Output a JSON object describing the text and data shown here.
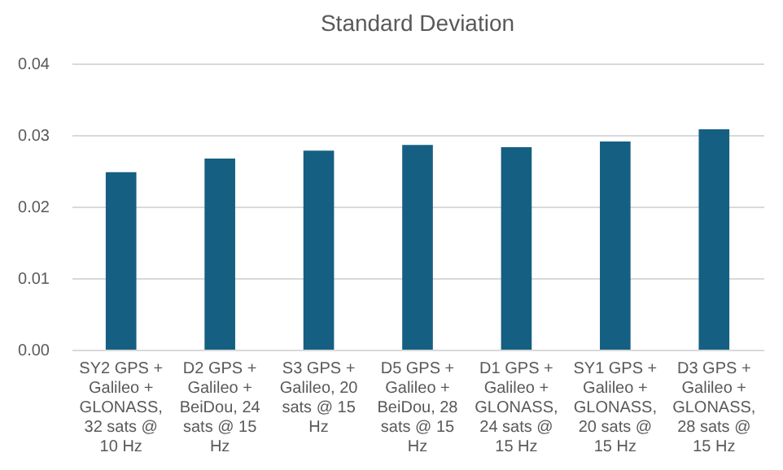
{
  "chart_data": {
    "type": "bar",
    "title": "Standard Deviation",
    "categories": [
      "SY2 GPS + Galileo + GLONASS, 32 sats @ 10 Hz",
      "D2 GPS + Galileo + BeiDou, 24 sats @ 15 Hz",
      "S3 GPS + Galileo, 20 sats @ 15 Hz",
      "D5 GPS + Galileo + BeiDou, 28 sats @ 15 Hz",
      "D1 GPS + Galileo + GLONASS, 24 sats @ 15 Hz",
      "SY1 GPS + Galileo + GLONASS, 20 sats @ 15 Hz",
      "D3 GPS + Galileo + GLONASS, 28 sats @ 15 Hz"
    ],
    "values": [
      0.0248,
      0.0267,
      0.0278,
      0.0286,
      0.0283,
      0.0291,
      0.0308
    ],
    "color": "#155f82",
    "ylim": [
      0,
      0.04
    ],
    "yticks": [
      {
        "value": 0,
        "label": "0.00"
      },
      {
        "value": 0.01,
        "label": "0.01"
      },
      {
        "value": 0.02,
        "label": "0.02"
      },
      {
        "value": 0.03,
        "label": "0.03"
      },
      {
        "value": 0.04,
        "label": "0.04"
      }
    ],
    "grid": "y"
  }
}
